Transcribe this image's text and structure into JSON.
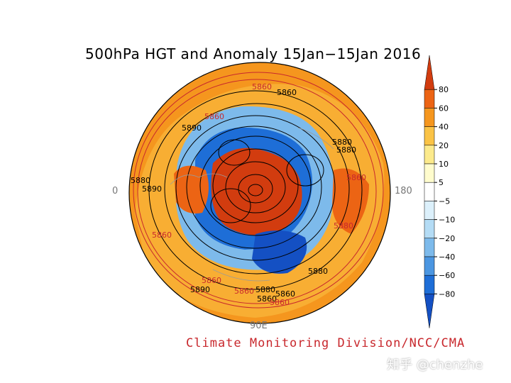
{
  "title": "500hPa HGT and Anomaly 15Jan−15Jan 2016",
  "credit": "Climate Monitoring Division/NCC/CMA",
  "watermark": "知乎 @chenzhe",
  "longitude_labels": {
    "left": "0",
    "right": "180",
    "bottom": "90E"
  },
  "colorbar": {
    "ticks": [
      "80",
      "60",
      "40",
      "20",
      "10",
      "5",
      "−5",
      "−10",
      "−20",
      "−40",
      "−60",
      "−80"
    ],
    "colors": [
      "#d23c0f",
      "#ec6414",
      "#f5961e",
      "#fac346",
      "#fcea8c",
      "#fffccd",
      "#ffffff",
      "#dcf0fb",
      "#b4dcf5",
      "#7dbaeb",
      "#4b96e1",
      "#1e6ed7",
      "#1450c3"
    ]
  },
  "contour_labels": {
    "black": [
      "5860",
      "5890",
      "5880",
      "5880",
      "5890",
      "5880",
      "5880",
      "5890",
      "5880",
      "5860",
      "5860"
    ],
    "red": [
      "5860",
      "5860",
      "5860",
      "5880",
      "5860",
      "5860",
      "5860",
      "5860"
    ]
  }
}
